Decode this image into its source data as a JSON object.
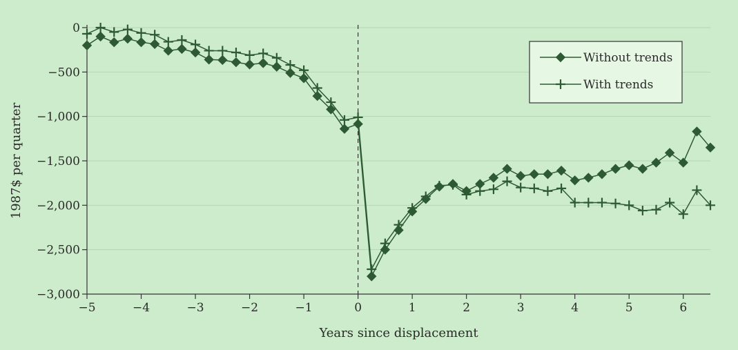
{
  "chart_data": {
    "type": "line",
    "xlabel": "Years since displacement",
    "ylabel": "1987$ per quarter",
    "xlim": [
      -5,
      6.5
    ],
    "ylim": [
      -3000,
      0
    ],
    "x_ticks": [
      -5,
      -4,
      -3,
      -2,
      -1,
      0,
      1,
      2,
      3,
      4,
      5,
      6
    ],
    "x_tick_labels": [
      "−5",
      "−4",
      "−3",
      "−2",
      "−1",
      "0",
      "1",
      "2",
      "3",
      "4",
      "5",
      "6"
    ],
    "y_ticks": [
      0,
      -500,
      -1000,
      -1500,
      -2000,
      -2500,
      -3000
    ],
    "y_tick_labels": [
      "0",
      "−500",
      "−1,000",
      "−1,500",
      "−2,000",
      "−2,500",
      "−3,000"
    ],
    "grid": "horizontal",
    "reference_line": {
      "x": 0,
      "style": "dashed"
    },
    "legend": {
      "position": "top-right"
    },
    "x": [
      -5,
      -4.75,
      -4.5,
      -4.25,
      -4,
      -3.75,
      -3.5,
      -3.25,
      -3,
      -2.75,
      -2.5,
      -2.25,
      -2,
      -1.75,
      -1.5,
      -1.25,
      -1,
      -0.75,
      -0.5,
      -0.25,
      0,
      0.25,
      0.5,
      0.75,
      1,
      1.25,
      1.5,
      1.75,
      2,
      2.25,
      2.5,
      2.75,
      3,
      3.25,
      3.5,
      3.75,
      4,
      4.25,
      4.5,
      4.75,
      5,
      5.25,
      5.5,
      5.75,
      6,
      6.25,
      6.5
    ],
    "series": [
      {
        "name": "Without trends",
        "marker": "diamond",
        "color": "#2e5a33",
        "values": [
          -200,
          -100,
          -165,
          -125,
          -165,
          -185,
          -260,
          -240,
          -280,
          -360,
          -365,
          -390,
          -415,
          -400,
          -440,
          -510,
          -570,
          -770,
          -920,
          -1140,
          -1085,
          -2800,
          -2500,
          -2280,
          -2070,
          -1930,
          -1790,
          -1760,
          -1840,
          -1760,
          -1690,
          -1590,
          -1670,
          -1650,
          -1650,
          -1610,
          -1720,
          -1690,
          -1650,
          -1590,
          -1550,
          -1590,
          -1520,
          -1410,
          -1520,
          -1170,
          -1350
        ]
      },
      {
        "name": "With trends",
        "marker": "plus",
        "color": "#2e5a33",
        "values": [
          -70,
          0,
          -50,
          -20,
          -60,
          -80,
          -160,
          -140,
          -190,
          -260,
          -260,
          -280,
          -310,
          -290,
          -340,
          -420,
          -480,
          -680,
          -840,
          -1040,
          -1010,
          -2720,
          -2430,
          -2220,
          -2030,
          -1900,
          -1780,
          -1770,
          -1880,
          -1840,
          -1820,
          -1730,
          -1800,
          -1810,
          -1840,
          -1810,
          -1970,
          -1970,
          -1970,
          -1980,
          -2000,
          -2060,
          -2050,
          -1970,
          -2100,
          -1830,
          -2000
        ]
      }
    ]
  }
}
